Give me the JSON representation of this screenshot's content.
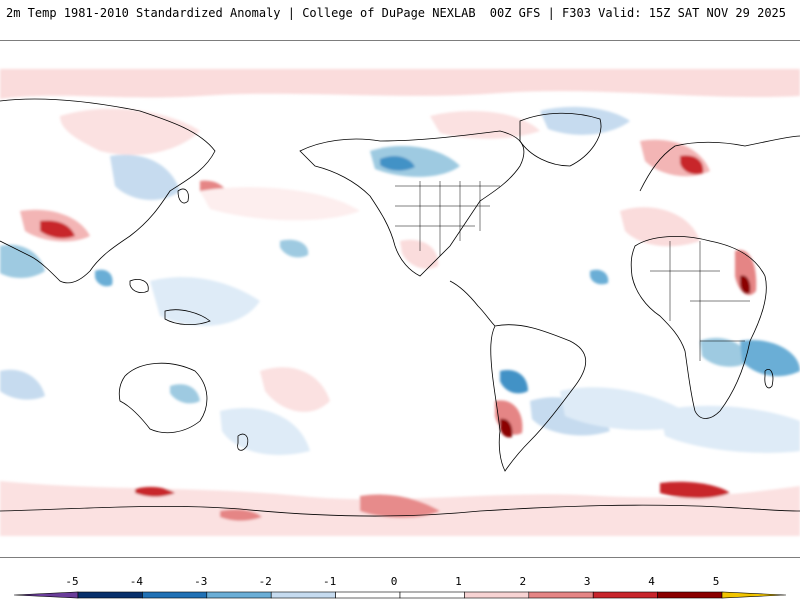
{
  "header": {
    "left": "2m Temp 1981-2010 Standardized Anomaly | College of DuPage NEXLAB",
    "right": "00Z GFS | F303 Valid: 15Z SAT NOV 29 2025"
  },
  "map": {
    "projection": "global equirectangular, centered on the Pacific",
    "variable": "2m temperature standardized anomaly"
  },
  "colorbar": {
    "ticks": [
      "-5",
      "-4",
      "-3",
      "-2",
      "-1",
      "0",
      "1",
      "2",
      "3",
      "4",
      "5"
    ],
    "colors": [
      "#6a3d9a",
      "#08306b",
      "#2171b5",
      "#6baed6",
      "#c6dbef",
      "#ffffff",
      "#ffffff",
      "#f7d3d3",
      "#e58585",
      "#c8252c",
      "#8b0000",
      "#f2c500"
    ]
  }
}
